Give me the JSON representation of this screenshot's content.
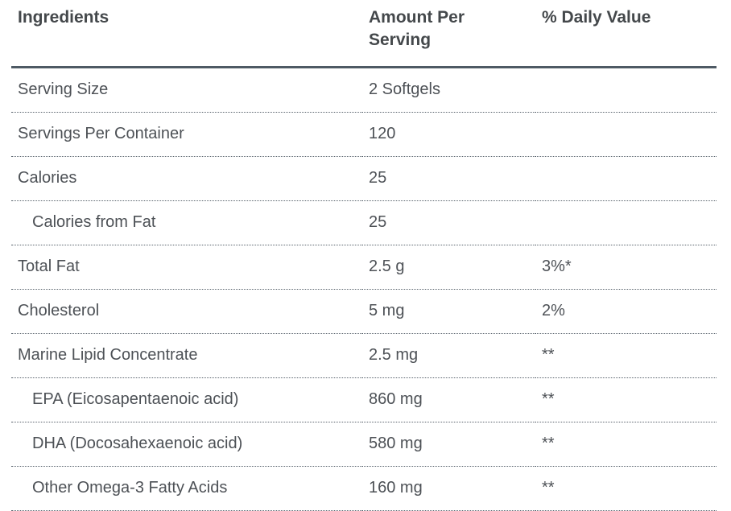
{
  "table": {
    "columns": [
      "Ingredients",
      "Amount Per Serving",
      "% Daily Value"
    ],
    "rows": [
      {
        "ingredient": "Serving Size",
        "amount": "2 Softgels",
        "daily_value": "",
        "indent": false
      },
      {
        "ingredient": "Servings Per Container",
        "amount": "120",
        "daily_value": "",
        "indent": false
      },
      {
        "ingredient": "Calories",
        "amount": "25",
        "daily_value": "",
        "indent": false
      },
      {
        "ingredient": "Calories from Fat",
        "amount": "25",
        "daily_value": "",
        "indent": true
      },
      {
        "ingredient": "Total Fat",
        "amount": "2.5 g",
        "daily_value": "3%*",
        "indent": false
      },
      {
        "ingredient": "Cholesterol",
        "amount": "5 mg",
        "daily_value": "2%",
        "indent": false
      },
      {
        "ingredient": "Marine Lipid Concentrate",
        "amount": "2.5 mg",
        "daily_value": "**",
        "indent": false
      },
      {
        "ingredient": "EPA (Eicosapentaenoic acid)",
        "amount": "860 mg",
        "daily_value": "**",
        "indent": true
      },
      {
        "ingredient": "DHA (Docosahexaenoic acid)",
        "amount": "580 mg",
        "daily_value": "**",
        "indent": true
      },
      {
        "ingredient": "Other Omega-3 Fatty Acids",
        "amount": "160 mg",
        "daily_value": "**",
        "indent": true
      }
    ],
    "colors": {
      "header_text": "#44484b",
      "body_text": "#4d5156",
      "header_rule": "#4e5a64",
      "row_rule": "#5a646e",
      "background": "#ffffff"
    }
  }
}
